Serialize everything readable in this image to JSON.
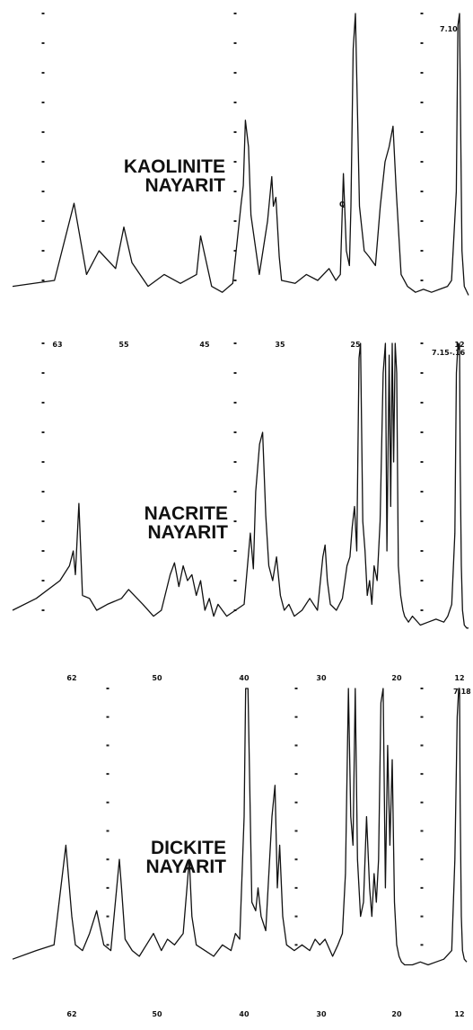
{
  "chart_data": [
    {
      "type": "line",
      "title": "KAOLINITE NAYARIT",
      "title_lines": [
        "KAOLINITE",
        "NAYARIT"
      ],
      "x_axis": "degrees 2-theta, decreasing to the right",
      "x_tick_labels": [
        "63",
        "55",
        "45",
        "35",
        "25",
        "12"
      ],
      "peak_labels": [
        "7.10",
        "Q"
      ],
      "series": [
        {
          "x": [
            66,
            63.2,
            61,
            59.5,
            58,
            56,
            55,
            54,
            52,
            50,
            48,
            46,
            45.5,
            44,
            42.5,
            41,
            39.8,
            39.5,
            39.2,
            38.8,
            38.5,
            37.9,
            37.5,
            36.5,
            36,
            35.8,
            35.5,
            35.1,
            34.8,
            33,
            31.5,
            30,
            28.5,
            27.6,
            27,
            26.6,
            26.2,
            25.8,
            25.6,
            25.3,
            25,
            24.5,
            23.9,
            23.3,
            22.5,
            21.9,
            21.3,
            20.8,
            20.3,
            19.9,
            19.3,
            18.5,
            17.5,
            16.5,
            15.5,
            14.5,
            13.5,
            13,
            12.4,
            12.2,
            12,
            11.8,
            11.6,
            11.2,
            10.5
          ],
          "y": [
            8,
            10,
            36,
            12,
            20,
            14,
            28,
            16,
            8,
            12,
            9,
            12,
            25,
            8,
            6,
            9,
            36,
            42,
            64,
            55,
            32,
            20,
            12,
            30,
            45,
            35,
            38,
            18,
            10,
            9,
            12,
            10,
            14,
            10,
            12,
            46,
            20,
            15,
            35,
            88,
            100,
            35,
            20,
            18,
            15,
            35,
            50,
            55,
            62,
            40,
            12,
            8,
            6,
            7,
            6,
            7,
            8,
            10,
            40,
            96,
            100,
            60,
            20,
            8,
            5
          ]
        }
      ],
      "ylim": [
        0,
        100
      ],
      "y_ticks": [
        10,
        20,
        30,
        40,
        50,
        60,
        70,
        80,
        90,
        100
      ]
    },
    {
      "type": "line",
      "title": "NACRITE NAYARIT",
      "title_lines": [
        "NACRITE",
        "NAYARIT"
      ],
      "x_axis": "degrees 2-theta, decreasing to the right",
      "x_tick_labels": [
        "62",
        "50",
        "40",
        "30",
        "20",
        "12"
      ],
      "peak_labels": [
        "7.15-.16"
      ],
      "series": [
        {
          "x": [
            67,
            65,
            63,
            62.2,
            61.8,
            61.5,
            61,
            60.5,
            59.5,
            58.5,
            57,
            55,
            54,
            52,
            50.5,
            49.5,
            48.5,
            48,
            47.5,
            47,
            46.5,
            46,
            45.5,
            45,
            44.5,
            44,
            43.5,
            43,
            42,
            41,
            40,
            39.2,
            38.8,
            38.5,
            38,
            37.6,
            37.2,
            36.8,
            36.3,
            35.8,
            35.3,
            34.8,
            34.2,
            33.5,
            32.5,
            31.5,
            30.5,
            29.8,
            29.5,
            29.2,
            28.8,
            28,
            27.2,
            26.6,
            26.2,
            25.9,
            25.6,
            25.3,
            25,
            24.8,
            24.5,
            24.2,
            23.9,
            23.6,
            23.3,
            23,
            22.6,
            22.2,
            21.8,
            21.5,
            21.3,
            21,
            20.8,
            20.6,
            20.4,
            20.2,
            20,
            19.8,
            19.5,
            19.2,
            19,
            18.5,
            18,
            17,
            16,
            15,
            14,
            13.5,
            13,
            12.6,
            12.4,
            12.2,
            12.1,
            12,
            11.9,
            11.7,
            11.5,
            11.2,
            10.8,
            10.5
          ],
          "y": [
            10,
            14,
            20,
            25,
            30,
            22,
            46,
            15,
            14,
            10,
            12,
            14,
            17,
            12,
            8,
            10,
            22,
            26,
            18,
            25,
            20,
            22,
            15,
            20,
            10,
            14,
            8,
            12,
            8,
            10,
            12,
            36,
            24,
            50,
            66,
            70,
            42,
            25,
            20,
            28,
            15,
            10,
            12,
            8,
            10,
            14,
            10,
            28,
            32,
            20,
            12,
            10,
            14,
            25,
            28,
            38,
            45,
            30,
            95,
            100,
            40,
            30,
            15,
            20,
            12,
            25,
            20,
            40,
            90,
            100,
            30,
            96,
            45,
            100,
            60,
            100,
            90,
            25,
            15,
            10,
            8,
            6,
            8,
            5,
            6,
            7,
            6,
            8,
            12,
            36,
            90,
            100,
            98,
            100,
            60,
            25,
            10,
            5,
            4,
            4
          ]
        }
      ],
      "ylim": [
        0,
        100
      ],
      "y_ticks": [
        10,
        20,
        30,
        40,
        50,
        60,
        70,
        80,
        90,
        100
      ]
    },
    {
      "type": "line",
      "title": "DICKITE NAYARIT",
      "title_lines": [
        "DICKITE",
        "NAYARIT"
      ],
      "x_axis": "degrees 2-theta, decreasing to the right",
      "x_tick_labels": [
        "62",
        "50",
        "40",
        "30",
        "20",
        "12"
      ],
      "peak_labels": [
        "7.18"
      ],
      "series": [
        {
          "x": [
            67,
            65,
            63.5,
            62.5,
            62,
            61.5,
            60.5,
            59.5,
            58.5,
            57.5,
            56.5,
            55.3,
            55,
            54.5,
            53.5,
            52.5,
            51.5,
            50.5,
            49.5,
            48.8,
            48,
            47,
            46.3,
            46,
            45.5,
            44.5,
            43.5,
            42.5,
            41.5,
            41,
            40.5,
            40,
            39.8,
            39.5,
            39,
            38.5,
            38.2,
            37.8,
            37.2,
            36.4,
            36,
            35.7,
            35.4,
            35,
            34.5,
            33.5,
            32.5,
            31.5,
            30.8,
            30.2,
            29.5,
            28.5,
            27.8,
            27.2,
            26.8,
            26.4,
            26.1,
            25.8,
            25.5,
            25.2,
            24.8,
            24.4,
            24,
            23.6,
            23.3,
            23,
            22.7,
            22.4,
            22.1,
            21.8,
            21.5,
            21.2,
            20.9,
            20.6,
            20.3,
            20,
            19.7,
            19.4,
            19,
            18,
            17,
            16,
            15,
            14,
            13,
            12.6,
            12.3,
            12.1,
            12,
            11.9,
            11.7,
            11.5,
            11.2,
            10.8
          ],
          "y": [
            5,
            8,
            10,
            45,
            20,
            10,
            8,
            14,
            22,
            10,
            8,
            40,
            30,
            12,
            8,
            6,
            10,
            14,
            8,
            12,
            10,
            14,
            40,
            20,
            10,
            8,
            6,
            10,
            8,
            14,
            12,
            55,
            100,
            100,
            25,
            22,
            30,
            20,
            15,
            55,
            66,
            30,
            45,
            20,
            10,
            8,
            10,
            8,
            12,
            10,
            12,
            6,
            10,
            14,
            35,
            100,
            55,
            45,
            100,
            40,
            20,
            25,
            55,
            30,
            20,
            35,
            25,
            40,
            95,
            100,
            30,
            80,
            45,
            75,
            25,
            10,
            6,
            4,
            3,
            3,
            4,
            3,
            4,
            5,
            8,
            40,
            90,
            100,
            100,
            60,
            20,
            8,
            5,
            4
          ]
        }
      ],
      "ylim": [
        0,
        100
      ],
      "y_ticks": [
        10,
        20,
        30,
        40,
        50,
        60,
        70,
        80,
        90,
        100
      ]
    }
  ]
}
